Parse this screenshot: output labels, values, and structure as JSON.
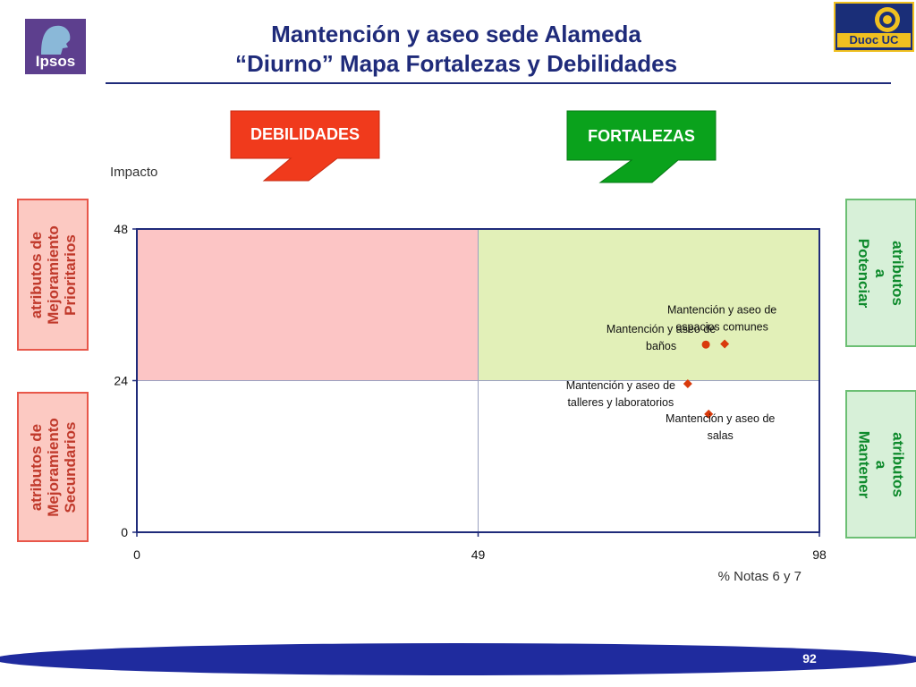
{
  "header": {
    "title_line1": "Mantención y aseo sede Alameda",
    "title_line2": "“Diurno” Mapa Fortalezas y Debilidades",
    "left_logo_text": "Ipsos",
    "right_logo_text": "Duoc UC"
  },
  "arrows": {
    "weak_label": "DEBILIDADES",
    "strong_label": "FORTALEZAS",
    "weak_color": "#f03a1c",
    "strong_color": "#0aa21c"
  },
  "side_labels": {
    "top_left": "atributos de\nMejoramiento\nPrioritarios",
    "bottom_left": "atributos de\nMejoramiento\nSecundarios",
    "top_right": "atributos a\nPotenciar",
    "bottom_right": "atributos a\nMantener"
  },
  "chart_data": {
    "type": "scatter",
    "ylabel": "Impacto",
    "xlabel": "% Notas 6 y 7",
    "xlim": [
      0,
      98
    ],
    "ylim": [
      0,
      48
    ],
    "x_ticks": [
      "0",
      "49",
      "98"
    ],
    "y_ticks": [
      "0",
      "24",
      "48"
    ],
    "x_divider": 49,
    "y_divider": 24,
    "quadrant_colors": {
      "top_left": "#fcc5c5",
      "top_right": "#e2f0b8"
    },
    "points": [
      {
        "x": 81.7,
        "y": 29.7,
        "marker": "circle",
        "label": "Mantención y aseo de baños"
      },
      {
        "x": 84.4,
        "y": 29.8,
        "marker": "diamond",
        "label": "Mantención y aseo de espacios comunes"
      },
      {
        "x": 79.1,
        "y": 23.5,
        "marker": "diamond",
        "label": "Mantención y aseo de talleres y laboratorios"
      },
      {
        "x": 82.1,
        "y": 18.7,
        "marker": "diamond",
        "label": "Mantención y aseo de salas"
      }
    ],
    "point_color": "#d93a0c",
    "point_labels": [
      {
        "lines": [
          "Mantención y aseo de",
          "baños"
        ]
      },
      {
        "lines": [
          "Mantención y aseo de",
          "espacios comunes"
        ]
      },
      {
        "lines": [
          "Mantención y aseo de",
          "talleres y laboratorios"
        ]
      },
      {
        "lines": [
          "Mantención y aseo de",
          "salas"
        ]
      }
    ]
  },
  "footer": {
    "page_number": "92"
  }
}
